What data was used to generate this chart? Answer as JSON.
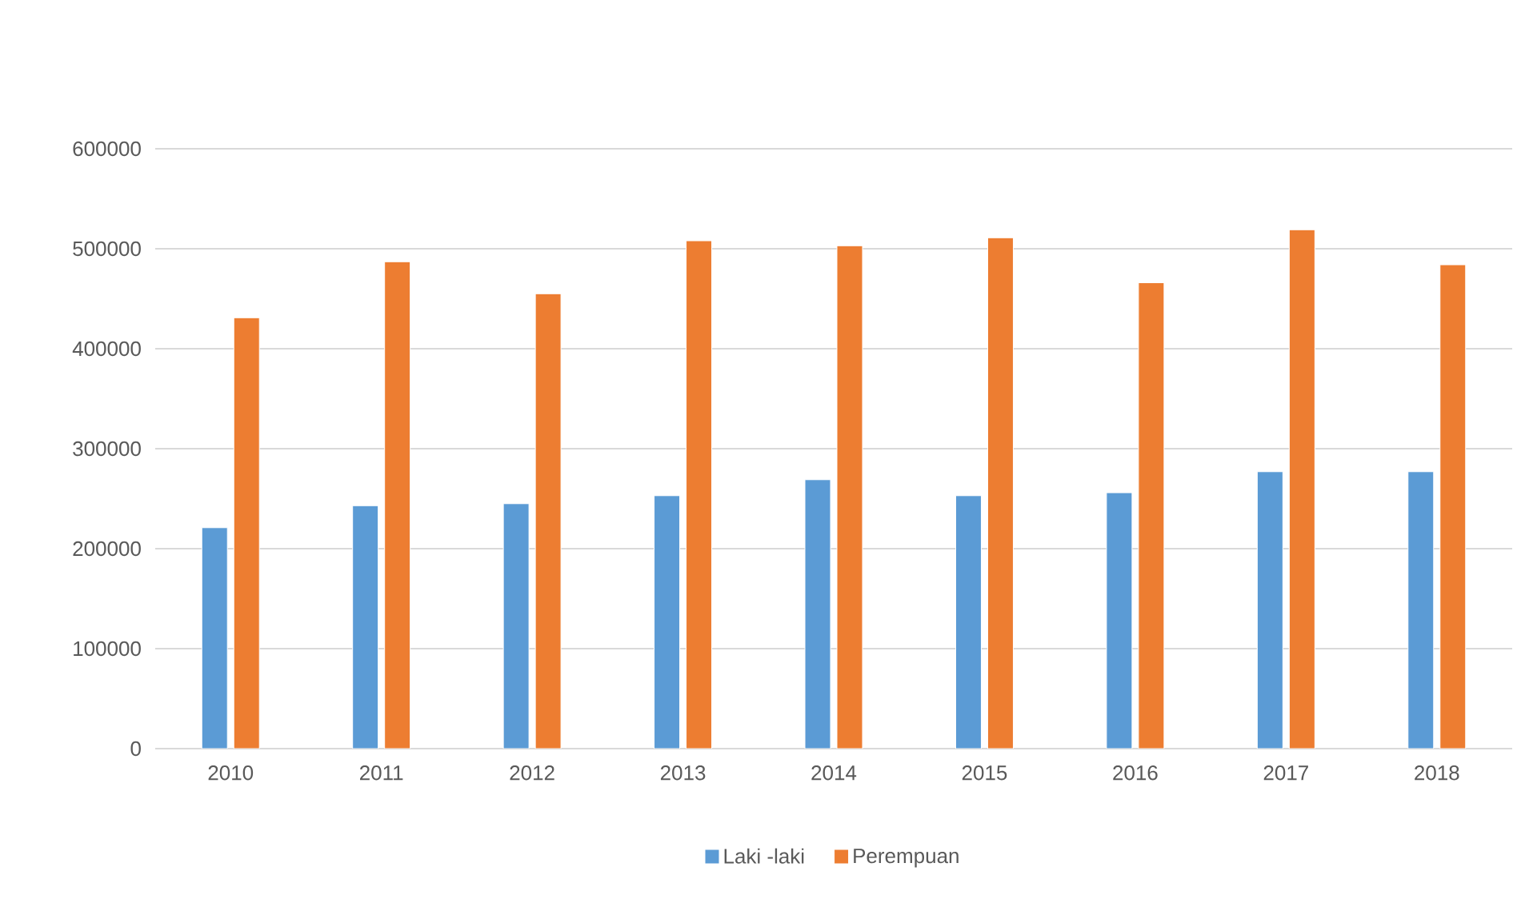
{
  "chart_data": {
    "type": "bar",
    "categories": [
      "2010",
      "2011",
      "2012",
      "2013",
      "2014",
      "2015",
      "2016",
      "2017",
      "2018"
    ],
    "series": [
      {
        "name": "Laki -laki",
        "color": "#5b9bd5",
        "values": [
          221000,
          243000,
          245000,
          253000,
          269000,
          253000,
          256000,
          277000,
          277000
        ]
      },
      {
        "name": "Perempuan",
        "color": "#ed7d31",
        "values": [
          431000,
          487000,
          455000,
          508000,
          503000,
          511000,
          466000,
          519000,
          484000
        ]
      }
    ],
    "ylim": [
      0,
      600000
    ],
    "yticks": [
      0,
      100000,
      200000,
      300000,
      400000,
      500000,
      600000
    ],
    "grid": "y",
    "legend": "bottom"
  }
}
